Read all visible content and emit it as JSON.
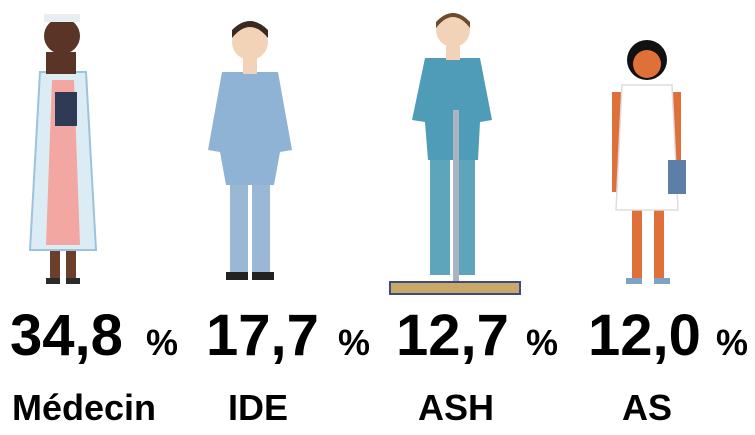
{
  "items": [
    {
      "value": "34,8",
      "unit": "%",
      "label": "Médecin"
    },
    {
      "value": "17,7",
      "unit": "%",
      "label": "IDE"
    },
    {
      "value": "12,7",
      "unit": "%",
      "label": "ASH"
    },
    {
      "value": "12,0",
      "unit": "%",
      "label": "AS"
    }
  ]
}
